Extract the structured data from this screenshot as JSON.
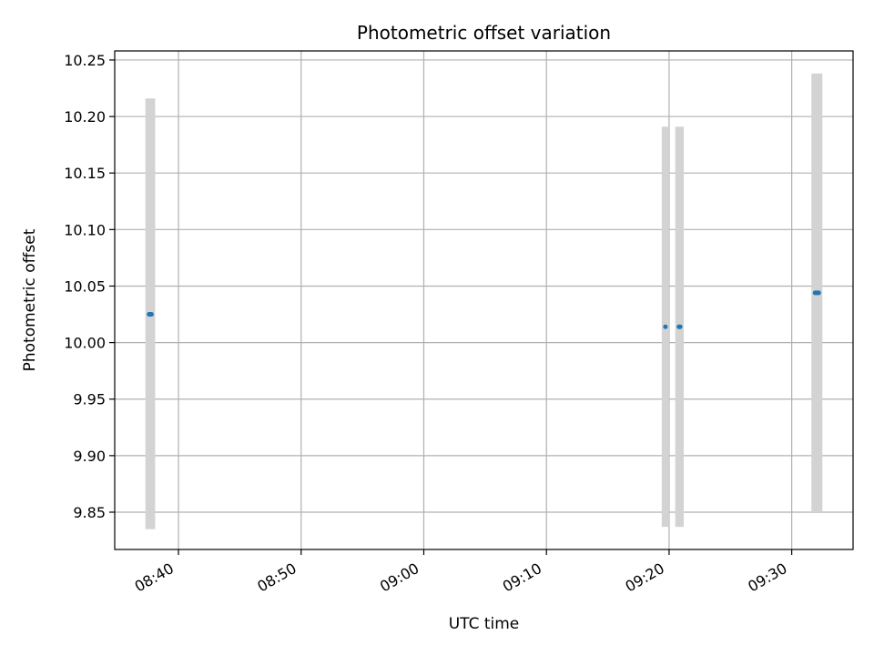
{
  "chart_data": {
    "type": "scatter",
    "title": "Photometric offset variation",
    "xlabel": "UTC time",
    "ylabel": "Photometric offset",
    "x_ticks": [
      "08:40",
      "08:50",
      "09:00",
      "09:10",
      "09:20",
      "09:30"
    ],
    "x_tick_minutes": [
      520,
      530,
      540,
      550,
      560,
      570
    ],
    "y_ticks": [
      "9.85",
      "9.90",
      "9.95",
      "10.00",
      "10.05",
      "10.10",
      "10.15",
      "10.20",
      "10.25"
    ],
    "xlim_minutes": [
      514.8,
      575.0
    ],
    "ylim": [
      9.817,
      10.258
    ],
    "grid": true,
    "point_color": "#1f77b4",
    "errorbar_color": "#d3d3d3",
    "points": [
      {
        "x_minutes": 517.6,
        "x_end_minutes": 517.8,
        "y": 10.025,
        "yerr_low": 9.835,
        "yerr_high": 10.216
      },
      {
        "x_minutes": 559.7,
        "x_end_minutes": 559.7,
        "y": 10.014,
        "yerr_low": 9.837,
        "yerr_high": 10.191
      },
      {
        "x_minutes": 560.8,
        "x_end_minutes": 560.9,
        "y": 10.014,
        "yerr_low": 9.837,
        "yerr_high": 10.191
      },
      {
        "x_minutes": 571.9,
        "x_end_minutes": 572.2,
        "y": 10.044,
        "yerr_low": 9.85,
        "yerr_high": 10.238
      }
    ]
  }
}
